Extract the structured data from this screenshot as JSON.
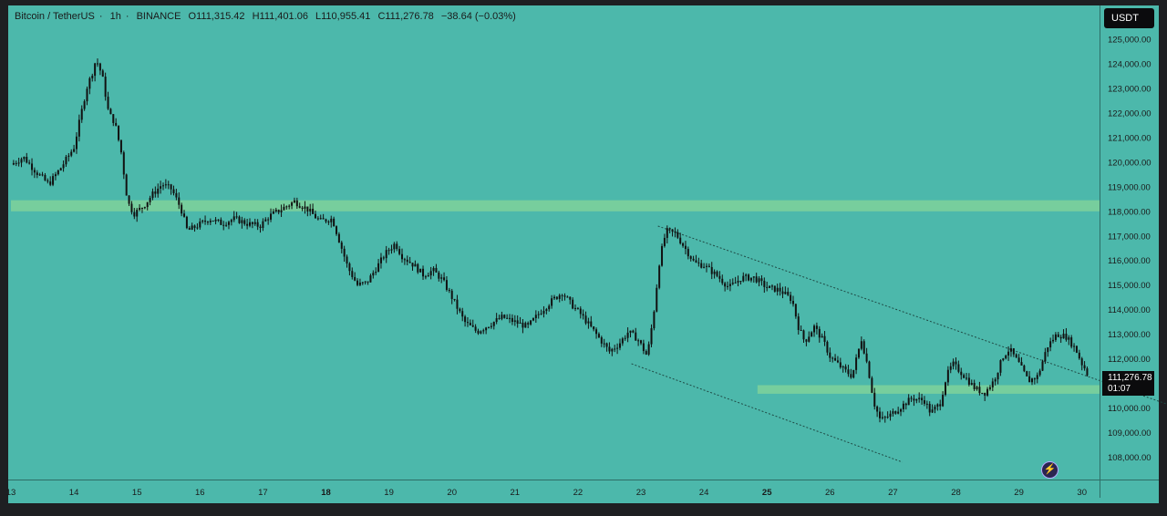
{
  "header": {
    "symbol": "Bitcoin / TetherUS",
    "interval": "1h",
    "exchange": "BINANCE",
    "open": "O111,315.42",
    "high": "H111,401.06",
    "low": "L110,955.41",
    "close": "C111,276.78",
    "change": "−38.64 (−0.03%)"
  },
  "currency_label": "USDT",
  "last_price": {
    "price": "111,276.78",
    "countdown": "01:07"
  },
  "icons": {
    "bolt": "lightning-icon"
  },
  "colors": {
    "background": "#4cb8ab",
    "zone": "#7fd19a",
    "candle": "#111111",
    "frame": "#1e1f22"
  },
  "chart_data": {
    "type": "candlestick",
    "title": "Bitcoin / TetherUS · 1h · BINANCE",
    "x_tick_labels": [
      "13",
      "14",
      "15",
      "16",
      "17",
      "18",
      "19",
      "20",
      "21",
      "22",
      "23",
      "24",
      "25",
      "26",
      "27",
      "28",
      "29",
      "30"
    ],
    "y_tick_labels": [
      "125,000.00",
      "124,000.00",
      "123,000.00",
      "122,000.00",
      "121,000.00",
      "120,000.00",
      "119,000.00",
      "118,000.00",
      "117,000.00",
      "116,000.00",
      "115,000.00",
      "114,000.00",
      "113,000.00",
      "112,000.00",
      "111,000.00",
      "110,000.00",
      "109,000.00",
      "108,000.00"
    ],
    "ylim": [
      107300,
      125700
    ],
    "xlim": [
      13.0,
      30.15
    ],
    "series": [
      {
        "name": "BTCUSDT 1h (approx. close path)",
        "points": [
          [
            13.0,
            119900
          ],
          [
            13.2,
            120200
          ],
          [
            13.4,
            119600
          ],
          [
            13.6,
            119100
          ],
          [
            13.8,
            119800
          ],
          [
            14.0,
            120600
          ],
          [
            14.1,
            121800
          ],
          [
            14.2,
            123000
          ],
          [
            14.3,
            123700
          ],
          [
            14.35,
            124200
          ],
          [
            14.45,
            123500
          ],
          [
            14.55,
            122000
          ],
          [
            14.65,
            121600
          ],
          [
            14.75,
            120400
          ],
          [
            14.85,
            118400
          ],
          [
            14.95,
            117900
          ],
          [
            15.1,
            118200
          ],
          [
            15.25,
            118700
          ],
          [
            15.4,
            119100
          ],
          [
            15.55,
            118900
          ],
          [
            15.7,
            118100
          ],
          [
            15.8,
            117200
          ],
          [
            15.95,
            117400
          ],
          [
            16.15,
            117700
          ],
          [
            16.35,
            117500
          ],
          [
            16.55,
            117700
          ],
          [
            16.75,
            117500
          ],
          [
            16.95,
            117400
          ],
          [
            17.1,
            117800
          ],
          [
            17.3,
            118100
          ],
          [
            17.5,
            118400
          ],
          [
            17.7,
            118100
          ],
          [
            17.9,
            117600
          ],
          [
            18.1,
            117700
          ],
          [
            18.25,
            116500
          ],
          [
            18.35,
            115700
          ],
          [
            18.5,
            115000
          ],
          [
            18.65,
            115100
          ],
          [
            18.8,
            115700
          ],
          [
            18.95,
            116300
          ],
          [
            19.1,
            116700
          ],
          [
            19.2,
            116200
          ],
          [
            19.4,
            115800
          ],
          [
            19.55,
            115400
          ],
          [
            19.7,
            115600
          ],
          [
            19.85,
            115200
          ],
          [
            20.0,
            114500
          ],
          [
            20.2,
            113500
          ],
          [
            20.4,
            113100
          ],
          [
            20.6,
            113400
          ],
          [
            20.8,
            113700
          ],
          [
            21.0,
            113500
          ],
          [
            21.2,
            113300
          ],
          [
            21.4,
            113900
          ],
          [
            21.6,
            114400
          ],
          [
            21.75,
            114700
          ],
          [
            21.9,
            114200
          ],
          [
            22.05,
            113800
          ],
          [
            22.2,
            113300
          ],
          [
            22.35,
            112800
          ],
          [
            22.5,
            112300
          ],
          [
            22.65,
            112600
          ],
          [
            22.8,
            113100
          ],
          [
            22.95,
            112800
          ],
          [
            23.1,
            112100
          ],
          [
            23.2,
            113800
          ],
          [
            23.3,
            116100
          ],
          [
            23.4,
            117200
          ],
          [
            23.55,
            117100
          ],
          [
            23.7,
            116500
          ],
          [
            23.85,
            115900
          ],
          [
            24.0,
            115800
          ],
          [
            24.2,
            115400
          ],
          [
            24.4,
            114900
          ],
          [
            24.6,
            115300
          ],
          [
            24.8,
            115300
          ],
          [
            25.0,
            114900
          ],
          [
            25.2,
            114800
          ],
          [
            25.4,
            114400
          ],
          [
            25.5,
            113300
          ],
          [
            25.6,
            112700
          ],
          [
            25.75,
            113300
          ],
          [
            25.9,
            112700
          ],
          [
            26.0,
            112100
          ],
          [
            26.2,
            111600
          ],
          [
            26.35,
            111300
          ],
          [
            26.5,
            112800
          ],
          [
            26.6,
            111700
          ],
          [
            26.7,
            110200
          ],
          [
            26.8,
            109500
          ],
          [
            26.95,
            109700
          ],
          [
            27.1,
            110000
          ],
          [
            27.3,
            110400
          ],
          [
            27.5,
            110300
          ],
          [
            27.6,
            109800
          ],
          [
            27.75,
            110200
          ],
          [
            27.85,
            111300
          ],
          [
            27.95,
            111800
          ],
          [
            28.1,
            111400
          ],
          [
            28.3,
            110800
          ],
          [
            28.45,
            110600
          ],
          [
            28.6,
            111100
          ],
          [
            28.75,
            112100
          ],
          [
            28.85,
            112400
          ],
          [
            29.0,
            111800
          ],
          [
            29.15,
            111100
          ],
          [
            29.3,
            111300
          ],
          [
            29.45,
            112500
          ],
          [
            29.6,
            113000
          ],
          [
            29.75,
            112900
          ],
          [
            29.9,
            112400
          ],
          [
            30.0,
            111800
          ],
          [
            30.05,
            111600
          ],
          [
            30.1,
            111300
          ]
        ]
      }
    ],
    "zones": [
      {
        "name": "resistance zone",
        "y_range": [
          118000,
          118450
        ],
        "x_range": [
          13.0,
          30.3
        ]
      },
      {
        "name": "support zone",
        "y_range": [
          110580,
          110930
        ],
        "x_range": [
          24.85,
          30.3
        ]
      }
    ],
    "trendlines": [
      {
        "name": "upper channel line",
        "from": [
          23.27,
          117400
        ],
        "to": [
          31.75,
          109800
        ]
      },
      {
        "name": "lower channel line",
        "from": [
          22.85,
          111800
        ],
        "to": [
          27.15,
          107800
        ]
      }
    ],
    "grid": false,
    "legend": "top-left"
  }
}
